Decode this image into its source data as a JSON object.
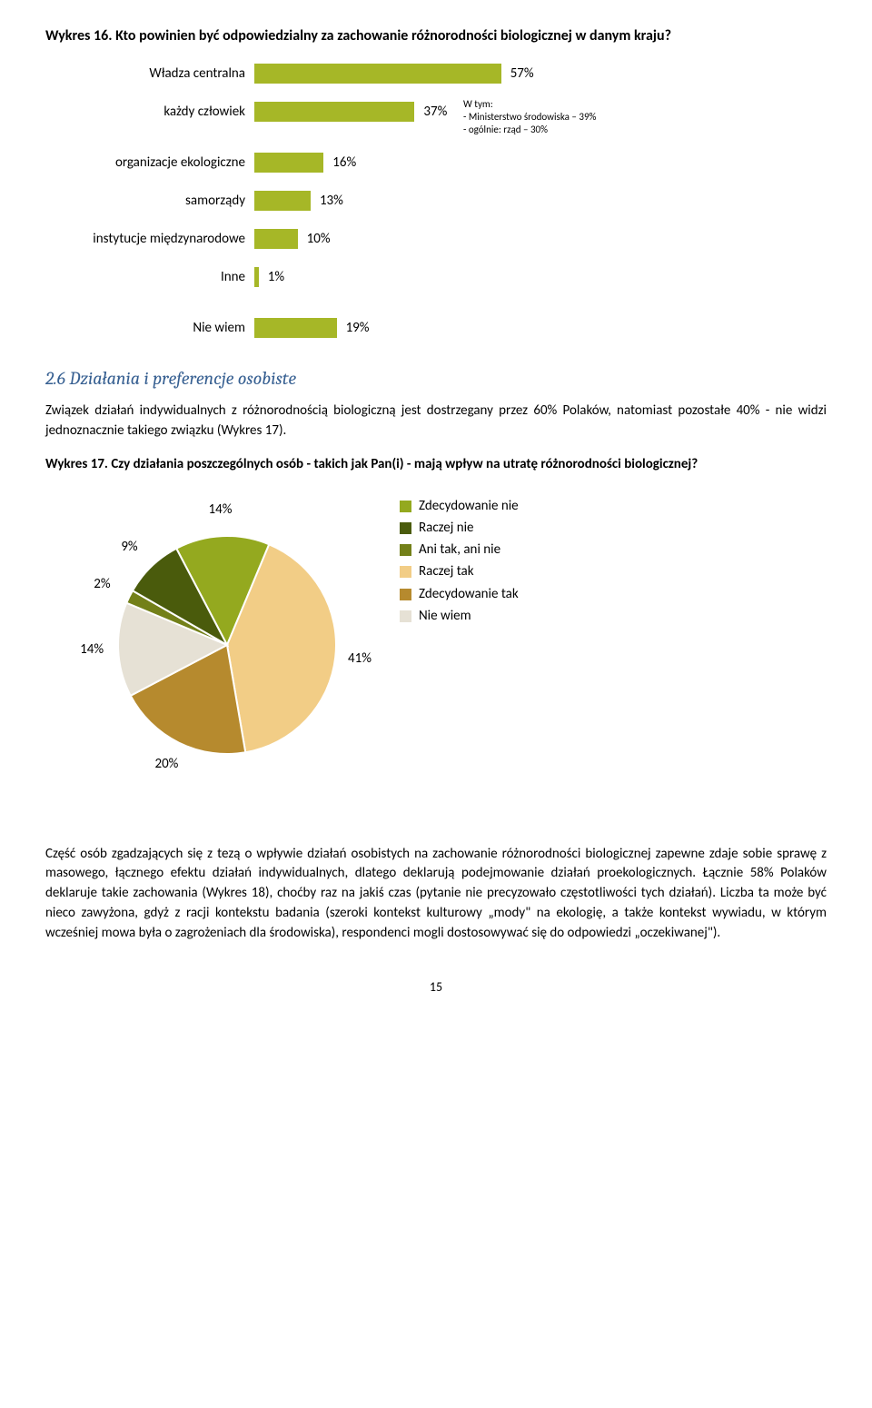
{
  "fig16": {
    "title": "Wykres 16. Kto powinien być odpowiedzialny za zachowanie różnorodności biologicznej w danym kraju?",
    "bar_color": "#a6b727",
    "max_pct": 60,
    "rows": [
      {
        "label": "Władza centralna",
        "value": 57,
        "value_str": "57%"
      },
      {
        "label": "każdy człowiek",
        "value": 37,
        "value_str": "37%",
        "note": "W tym:\n - Ministerstwo środowiska – 39%\n - ogólnie: rząd – 30%"
      },
      {
        "label": "organizacje ekologiczne",
        "value": 16,
        "value_str": "16%"
      },
      {
        "label": "samorządy",
        "value": 13,
        "value_str": "13%"
      },
      {
        "label": "instytucje międzynarodowe",
        "value": 10,
        "value_str": "10%"
      },
      {
        "label": "Inne",
        "value": 1,
        "value_str": "1%"
      },
      {
        "label": "Nie wiem",
        "value": 19,
        "value_str": "19%"
      }
    ]
  },
  "section": {
    "heading": "2.6   Działania i preferencje osobiste",
    "para1": "Związek działań indywidualnych z różnorodnością biologiczną jest dostrzegany przez 60% Polaków, natomiast pozostałe 40% - nie widzi jednoznacznie takiego związku (Wykres 17)."
  },
  "fig17": {
    "title": "Wykres 17. Czy działania poszczególnych osób - takich jak Pan(i) - mają wpływ na utratę różnorodności biologicznej?",
    "slices": [
      {
        "name": "Zdecydowanie nie",
        "value": 14,
        "label": "14%",
        "color": "#94a91f"
      },
      {
        "name": "Raczej nie",
        "value": 9,
        "label": "9%",
        "color": "#4a5b0c"
      },
      {
        "name": "Ani tak, ani nie",
        "value": 2,
        "label": "2%",
        "color": "#738019"
      },
      {
        "name": "Raczej tak",
        "value": 41,
        "label": "41%",
        "color": "#f2cd86"
      },
      {
        "name": "Zdecydowanie tak",
        "value": 20,
        "label": "20%",
        "color": "#b68a2e"
      },
      {
        "name": "Nie wiem",
        "value": 14,
        "label": "14%",
        "color": "#e6e1d5"
      }
    ],
    "legend_order": [
      {
        "name": "Zdecydowanie nie",
        "color": "#94a91f"
      },
      {
        "name": "Raczej nie",
        "color": "#4a5b0c"
      },
      {
        "name": "Ani tak, ani nie",
        "color": "#738019"
      },
      {
        "name": "Raczej tak",
        "color": "#f2cd86"
      },
      {
        "name": "Zdecydowanie tak",
        "color": "#b68a2e"
      },
      {
        "name": "Nie wiem",
        "color": "#e6e1d5"
      }
    ]
  },
  "body2": "Część osób zgadzających się z tezą o wpływie działań osobistych na zachowanie różnorodności biologicznej zapewne zdaje sobie sprawę z masowego, łącznego efektu działań indywidualnych, dlatego deklarują podejmowanie działań proekologicznych. Łącznie 58% Polaków deklaruje takie zachowania (Wykres 18), choćby raz na jakiś czas (pytanie nie precyzowało częstotliwości tych działań). Liczba ta może być nieco zawyżona, gdyż z racji kontekstu badania (szeroki kontekst kulturowy „mody\" na ekologię, a także kontekst wywiadu, w którym wcześniej mowa była o zagrożeniach dla środowiska), respondenci mogli dostosowywać się do odpowiedzi „oczekiwanej\").",
  "page_number": "15"
}
